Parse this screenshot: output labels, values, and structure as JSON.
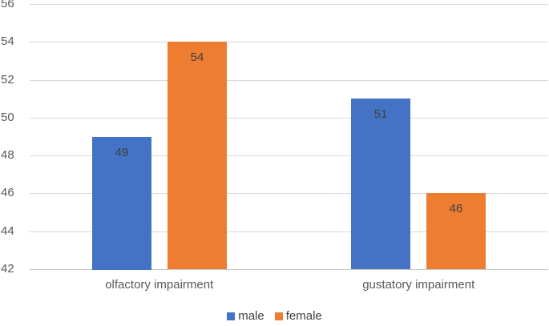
{
  "chart_data": {
    "type": "bar",
    "title": "",
    "xlabel": "",
    "ylabel": "",
    "categories": [
      "olfactory impairment",
      "gustatory impairment"
    ],
    "series": [
      {
        "name": "male",
        "color": "#4472c4",
        "values": [
          49,
          51
        ]
      },
      {
        "name": "female",
        "color": "#ed7d31",
        "values": [
          54,
          46
        ]
      }
    ],
    "ylim": [
      42,
      56
    ],
    "yticks": [
      42,
      44,
      46,
      48,
      50,
      52,
      54,
      56
    ],
    "grid": true,
    "gridline_color": "#d9d9d9",
    "axis_line_color": "#c6c6c6",
    "axis_text_color": "#595959",
    "data_label_color": "#404040",
    "data_labels": "inside-end",
    "legend_position": "bottom"
  }
}
